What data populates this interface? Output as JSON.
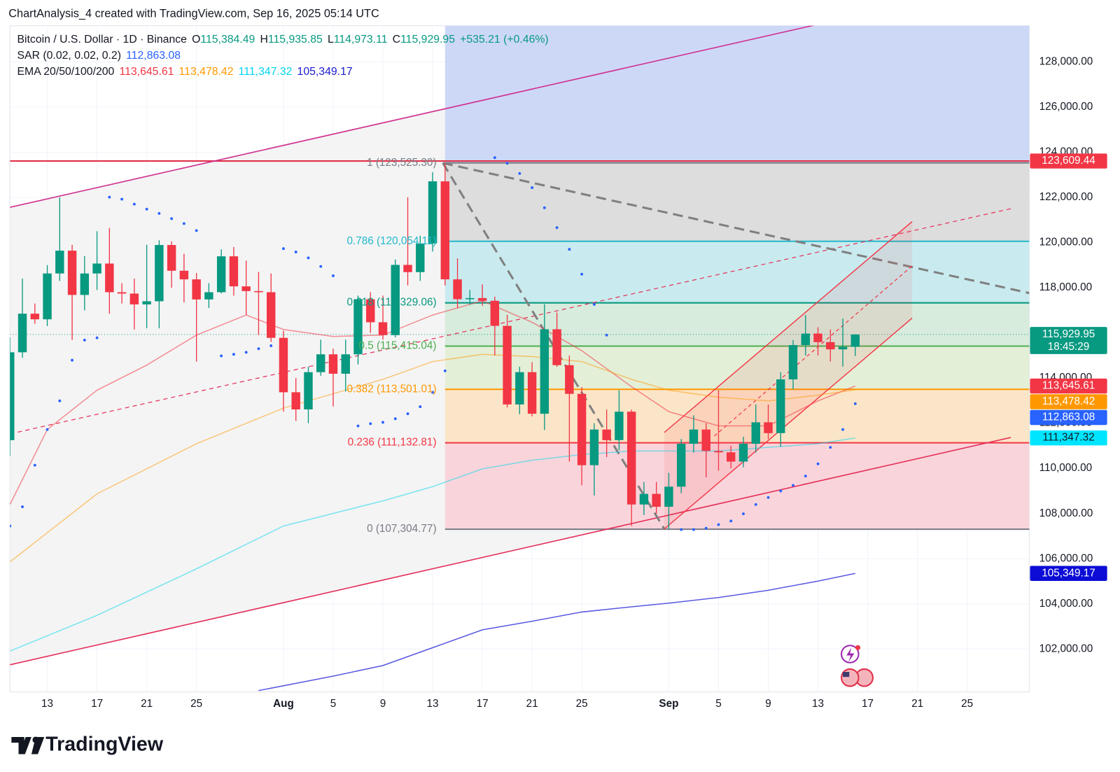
{
  "header": "ChartAnalysis_4 created with TradingView.com, Sep 16, 2025 05:14 UTC",
  "brand": "TradingView",
  "chart_data": {
    "type": "candlestick",
    "grid": true,
    "up_color": "#089981",
    "down_color": "#f23645",
    "xlim": [
      "2025-07-10",
      "2025-09-30"
    ],
    "ylim": [
      100100,
      129600
    ],
    "xticks": [
      {
        "value": "2025-07-13",
        "label": "13"
      },
      {
        "value": "2025-07-17",
        "label": "17"
      },
      {
        "value": "2025-07-21",
        "label": "21"
      },
      {
        "value": "2025-07-25",
        "label": "25"
      },
      {
        "value": "2025-08-01",
        "label": "Aug"
      },
      {
        "value": "2025-08-05",
        "label": "5"
      },
      {
        "value": "2025-08-09",
        "label": "9"
      },
      {
        "value": "2025-08-13",
        "label": "13"
      },
      {
        "value": "2025-08-17",
        "label": "17"
      },
      {
        "value": "2025-08-21",
        "label": "21"
      },
      {
        "value": "2025-08-25",
        "label": "25"
      },
      {
        "value": "2025-09-01",
        "label": "Sep"
      },
      {
        "value": "2025-09-05",
        "label": "5"
      },
      {
        "value": "2025-09-09",
        "label": "9"
      },
      {
        "value": "2025-09-13",
        "label": "13"
      },
      {
        "value": "2025-09-17",
        "label": "17"
      },
      {
        "value": "2025-09-21",
        "label": "21"
      },
      {
        "value": "2025-09-25",
        "label": "25"
      }
    ],
    "yticks": [
      {
        "value": 102000,
        "label": "102,000.00"
      },
      {
        "value": 104000,
        "label": "104,000.00"
      },
      {
        "value": 106000,
        "label": "106,000.00"
      },
      {
        "value": 108000,
        "label": "108,000.00"
      },
      {
        "value": 110000,
        "label": "110,000.00"
      },
      {
        "value": 112000,
        "label": "112,000.00"
      },
      {
        "value": 114000,
        "label": "114,000.00"
      },
      {
        "value": 116000,
        "label": "116,000.00"
      },
      {
        "value": 118000,
        "label": "118,000.00"
      },
      {
        "value": 120000,
        "label": "120,000.00"
      },
      {
        "value": 122000,
        "label": "122,000.00"
      },
      {
        "value": 124000,
        "label": "124,000.00"
      },
      {
        "value": 126000,
        "label": "126,000.00"
      },
      {
        "value": 128000,
        "label": "128,000.00"
      }
    ],
    "legend": [
      {
        "title": "Bitcoin / U.S. Dollar · 1D · Binance",
        "items": [
          {
            "prefix": "O",
            "text": "115,384.49",
            "color": "#089981"
          },
          {
            "prefix": "H",
            "text": "115,935.85",
            "color": "#089981"
          },
          {
            "prefix": "L",
            "text": "114,973.11",
            "color": "#089981"
          },
          {
            "prefix": "C",
            "text": "115,929.95",
            "color": "#089981"
          },
          {
            "text": "+535.21 (+0.46%)",
            "color": "#089981"
          }
        ]
      },
      {
        "title": "SAR (0.02, 0.02, 0.2)",
        "items": [
          {
            "text": "112,863.08",
            "color": "#2962ff"
          }
        ]
      },
      {
        "title": "EMA 20/50/100/200",
        "items": [
          {
            "text": "113,645.61",
            "color": "#f23645"
          },
          {
            "text": "113,478.42",
            "color": "#ff9800"
          },
          {
            "text": "111,347.32",
            "color": "#00d5f0"
          },
          {
            "text": "105,349.17",
            "color": "#1a1ad0"
          }
        ]
      }
    ],
    "x": [
      "2025-07-10",
      "2025-07-11",
      "2025-07-12",
      "2025-07-13",
      "2025-07-14",
      "2025-07-15",
      "2025-07-16",
      "2025-07-17",
      "2025-07-18",
      "2025-07-19",
      "2025-07-20",
      "2025-07-21",
      "2025-07-22",
      "2025-07-23",
      "2025-07-24",
      "2025-07-25",
      "2025-07-26",
      "2025-07-27",
      "2025-07-28",
      "2025-07-29",
      "2025-07-30",
      "2025-07-31",
      "2025-08-01",
      "2025-08-02",
      "2025-08-03",
      "2025-08-04",
      "2025-08-05",
      "2025-08-06",
      "2025-08-07",
      "2025-08-08",
      "2025-08-09",
      "2025-08-10",
      "2025-08-11",
      "2025-08-12",
      "2025-08-13",
      "2025-08-14",
      "2025-08-15",
      "2025-08-16",
      "2025-08-17",
      "2025-08-18",
      "2025-08-19",
      "2025-08-20",
      "2025-08-21",
      "2025-08-22",
      "2025-08-23",
      "2025-08-24",
      "2025-08-25",
      "2025-08-26",
      "2025-08-27",
      "2025-08-28",
      "2025-08-29",
      "2025-08-30",
      "2025-08-31",
      "2025-09-01",
      "2025-09-02",
      "2025-09-03",
      "2025-09-04",
      "2025-09-05",
      "2025-09-06",
      "2025-09-07",
      "2025-09-08",
      "2025-09-09",
      "2025-09-10",
      "2025-09-11",
      "2025-09-12",
      "2025-09-13",
      "2025-09-14",
      "2025-09-15",
      "2025-09-16"
    ],
    "open": [
      111250,
      115140,
      116850,
      116600,
      118630,
      119640,
      117680,
      118630,
      119070,
      117800,
      117740,
      117260,
      117400,
      119890,
      118750,
      118370,
      117480,
      117800,
      119390,
      118060,
      117850,
      117800,
      115780,
      113370,
      112610,
      114260,
      115050,
      114190,
      115050,
      117490,
      116470,
      115900,
      119010,
      118690,
      119960,
      122710,
      118370,
      117490,
      117540,
      117420,
      116310,
      112830,
      114260,
      112420,
      116160,
      114570,
      113300,
      110140,
      111720,
      111250,
      112510,
      108400,
      108870,
      108300,
      109190,
      111090,
      111720,
      110770,
      110710,
      110300,
      111090,
      112040,
      111560,
      113940,
      115460,
      115970,
      115590,
      115270,
      115384.49
    ],
    "high": [
      115800,
      118400,
      117300,
      119000,
      122000,
      119900,
      119400,
      120500,
      120650,
      118200,
      118400,
      119900,
      120100,
      120050,
      119500,
      118650,
      118200,
      119700,
      119800,
      119200,
      118700,
      118630,
      116100,
      114000,
      114500,
      115700,
      115300,
      115700,
      117650,
      117800,
      117650,
      119250,
      122010,
      120300,
      123120,
      123525,
      119300,
      117900,
      118150,
      117600,
      116800,
      114500,
      114700,
      117270,
      116900,
      115000,
      113600,
      112000,
      112600,
      113460,
      112600,
      109400,
      109400,
      109800,
      111300,
      112350,
      112000,
      113460,
      111000,
      111400,
      112830,
      112830,
      114260,
      115680,
      116790,
      116250,
      116150,
      116630,
      115935.85
    ],
    "low": [
      110550,
      114900,
      116400,
      116300,
      118300,
      115680,
      117000,
      117900,
      116850,
      117300,
      116150,
      116200,
      116200,
      118000,
      117350,
      114730,
      117100,
      117750,
      117650,
      116800,
      115900,
      115600,
      112510,
      112100,
      112000,
      114100,
      112740,
      113400,
      114600,
      116000,
      115700,
      115800,
      118100,
      118300,
      119600,
      118100,
      117100,
      117250,
      117200,
      115000,
      112700,
      112400,
      112300,
      111700,
      114500,
      110300,
      109250,
      108800,
      110500,
      110800,
      107450,
      107930,
      108000,
      107305,
      108900,
      110700,
      109600,
      109900,
      110000,
      110050,
      110700,
      111300,
      110950,
      113500,
      115000,
      115000,
      114730,
      114500,
      114973.11
    ],
    "close": [
      115140,
      116850,
      116600,
      118630,
      119640,
      117680,
      118630,
      119070,
      117800,
      117740,
      117260,
      117400,
      119890,
      118750,
      118370,
      117480,
      117800,
      119390,
      118060,
      117850,
      117800,
      115780,
      113370,
      112610,
      114260,
      115050,
      114190,
      115050,
      117490,
      116470,
      115900,
      119010,
      118690,
      119960,
      122710,
      118370,
      117490,
      117540,
      117420,
      116310,
      112830,
      114260,
      112420,
      116160,
      114570,
      113300,
      110140,
      111720,
      111250,
      112510,
      108400,
      108870,
      108300,
      109190,
      111090,
      111720,
      110770,
      110710,
      110300,
      111090,
      112040,
      111560,
      113940,
      115460,
      115970,
      115590,
      115270,
      115380,
      115929.95
    ],
    "lines": [
      {
        "color": "#f23645",
        "opacity": 0.55,
        "x": [
          "2025-07-10",
          "2025-07-13",
          "2025-07-17",
          "2025-07-21",
          "2025-07-25",
          "2025-07-29",
          "2025-08-01",
          "2025-08-05",
          "2025-08-09",
          "2025-08-13",
          "2025-08-17",
          "2025-08-21",
          "2025-08-25",
          "2025-08-29",
          "2025-09-01",
          "2025-09-05",
          "2025-09-09",
          "2025-09-13",
          "2025-09-16"
        ],
        "values": [
          108400,
          111720,
          113460,
          114570,
          115900,
          116790,
          116150,
          115840,
          115900,
          116790,
          117420,
          116470,
          115210,
          113620,
          112510,
          111880,
          111880,
          112990,
          113645.61
        ]
      },
      {
        "color": "#ff9800",
        "opacity": 0.5,
        "x": [
          "2025-07-10",
          "2025-07-17",
          "2025-07-25",
          "2025-08-01",
          "2025-08-09",
          "2025-08-13",
          "2025-08-17",
          "2025-08-21",
          "2025-08-25",
          "2025-08-29",
          "2025-09-01",
          "2025-09-05",
          "2025-09-09",
          "2025-09-13",
          "2025-09-16"
        ],
        "values": [
          105860,
          108870,
          111090,
          112670,
          113940,
          114730,
          115050,
          114950,
          114730,
          113940,
          113460,
          113150,
          112990,
          113240,
          113478.42
        ]
      },
      {
        "color": "#00d5f0",
        "opacity": 0.5,
        "x": [
          "2025-07-10",
          "2025-07-17",
          "2025-07-25",
          "2025-08-01",
          "2025-08-09",
          "2025-08-13",
          "2025-08-17",
          "2025-08-21",
          "2025-08-25",
          "2025-08-29",
          "2025-09-01",
          "2025-09-05",
          "2025-09-09",
          "2025-09-13",
          "2025-09-16"
        ],
        "values": [
          101910,
          103490,
          105550,
          107450,
          108560,
          109190,
          109980,
          110360,
          110610,
          110770,
          110770,
          110770,
          110930,
          111090,
          111347.32
        ]
      },
      {
        "color": "#3c3cdc",
        "opacity": 0.85,
        "x": [
          "2025-07-30",
          "2025-08-05",
          "2025-08-09",
          "2025-08-13",
          "2025-08-17",
          "2025-08-21",
          "2025-08-25",
          "2025-08-29",
          "2025-09-01",
          "2025-09-05",
          "2025-09-09",
          "2025-09-13",
          "2025-09-16"
        ],
        "values": [
          100160,
          100800,
          101270,
          102060,
          102850,
          103230,
          103640,
          103870,
          104030,
          104280,
          104600,
          105010,
          105349.17
        ]
      }
    ],
    "sar": {
      "color": "#2962ff",
      "x": [
        "2025-07-10",
        "2025-07-11",
        "2025-07-12",
        "2025-07-13",
        "2025-07-14",
        "2025-07-15",
        "2025-07-16",
        "2025-07-17",
        "2025-07-18",
        "2025-07-19",
        "2025-07-20",
        "2025-07-21",
        "2025-07-22",
        "2025-07-23",
        "2025-07-24",
        "2025-07-25",
        "2025-07-27",
        "2025-07-28",
        "2025-07-29",
        "2025-07-30",
        "2025-07-31",
        "2025-08-01",
        "2025-08-02",
        "2025-08-03",
        "2025-08-04",
        "2025-08-05",
        "2025-08-07",
        "2025-08-08",
        "2025-08-09",
        "2025-08-10",
        "2025-08-11",
        "2025-08-12",
        "2025-08-13",
        "2025-08-14",
        "2025-08-18",
        "2025-08-19",
        "2025-08-20",
        "2025-08-21",
        "2025-08-22",
        "2025-08-23",
        "2025-08-24",
        "2025-08-25",
        "2025-08-26",
        "2025-08-27",
        "2025-09-02",
        "2025-09-03",
        "2025-09-04",
        "2025-09-05",
        "2025-09-06",
        "2025-09-07",
        "2025-09-08",
        "2025-09-09",
        "2025-09-10",
        "2025-09-11",
        "2025-09-12",
        "2025-09-13",
        "2025-09-14",
        "2025-09-15",
        "2025-09-16"
      ],
      "values": [
        107450,
        108300,
        110140,
        111720,
        112990,
        114790,
        115680,
        115780,
        122010,
        121920,
        121700,
        121480,
        121290,
        121060,
        120840,
        120530,
        114980,
        115050,
        115140,
        115300,
        115430,
        119730,
        119580,
        119320,
        118940,
        118530,
        111880,
        111980,
        112040,
        112200,
        112420,
        112730,
        113370,
        114320,
        123760,
        123510,
        123060,
        122430,
        121540,
        120660,
        119700,
        118600,
        117260,
        115900,
        107290,
        107290,
        107350,
        107510,
        107670,
        107990,
        108400,
        108710,
        109000,
        109250,
        109660,
        110200,
        110930,
        111720,
        112863.08
      ]
    },
    "fib": {
      "start": "2025-08-14",
      "levels": [
        {
          "price": 107304.77,
          "label": "0 (107,304.77)",
          "color": "#787b86",
          "zone_color": "#f9d5db"
        },
        {
          "price": 111132.81,
          "label": "0.236 (111,132.81)",
          "color": "#f23645",
          "zone_color": "#fbe5c8"
        },
        {
          "price": 113501.01,
          "label": "0.382 (113,501.01)",
          "color": "#ff9800",
          "zone_color": "#e4efd7"
        },
        {
          "price": 115415.04,
          "label": "0.5 (115,415.04)",
          "color": "#4caf50",
          "zone_color": "#d7ecdc"
        },
        {
          "price": 117329.06,
          "label": "0.618 (117,329.06)",
          "color": "#089981",
          "zone_color": "#c9ebef"
        },
        {
          "price": 120054.11,
          "label": "0.786 (120,054.11)",
          "color": "#22b8cc",
          "zone_color": "#dddddd"
        },
        {
          "price": 123525.3,
          "label": "1 (123,525.30)",
          "color": "#787b86",
          "zone_color": "#cdd8f7"
        }
      ]
    },
    "horizontal_lines": [
      {
        "value": 123609.44,
        "color": "#e0304a"
      }
    ],
    "price_badges": [
      {
        "value": 123609.44,
        "label": "123,609.44",
        "color": "#f23645"
      },
      {
        "value": 115929.95,
        "label": "115,929.95",
        "countdown": "18:45:29",
        "color": "#089981"
      },
      {
        "value": 113645.61,
        "label": "113,645.61",
        "color": "#f23645"
      },
      {
        "value": 113478.42,
        "label": "113,478.42",
        "color": "#ff9800"
      },
      {
        "value": 112863.08,
        "label": "112,863.08",
        "color": "#2962ff"
      },
      {
        "value": 111347.32,
        "label": "111,347.32",
        "color": "#00e5ff",
        "text_color": "#131722"
      },
      {
        "value": 105349.17,
        "label": "105,349.17",
        "color": "#0c0cd6"
      }
    ]
  }
}
